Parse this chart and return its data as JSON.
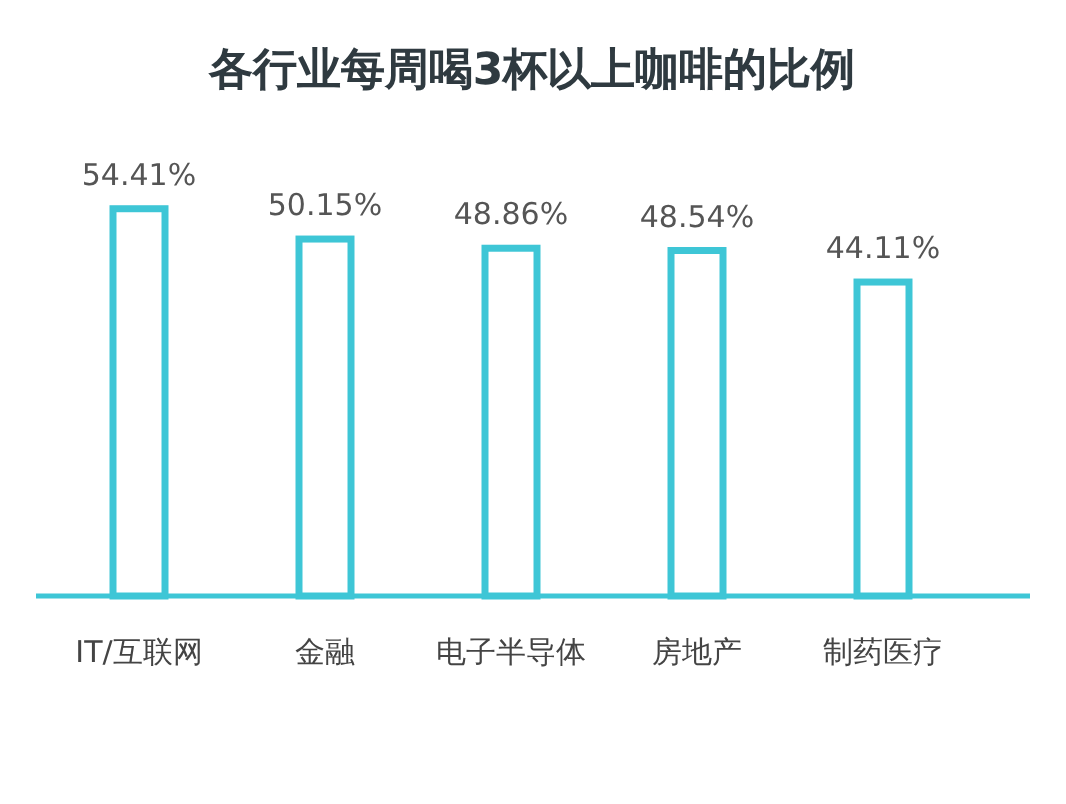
{
  "chart_data": {
    "type": "bar",
    "title": "各行业每周喝3杯以上咖啡的比例",
    "categories": [
      "IT/互联网",
      "金融",
      "电子半导体",
      "房地产",
      "制药医疗"
    ],
    "values": [
      54.41,
      50.15,
      48.86,
      48.54,
      44.11
    ],
    "color": "#3ec6d6",
    "value_labels": [
      "54.41%",
      "50.15%",
      "48.86%",
      "48.54%",
      "44.11%"
    ]
  }
}
